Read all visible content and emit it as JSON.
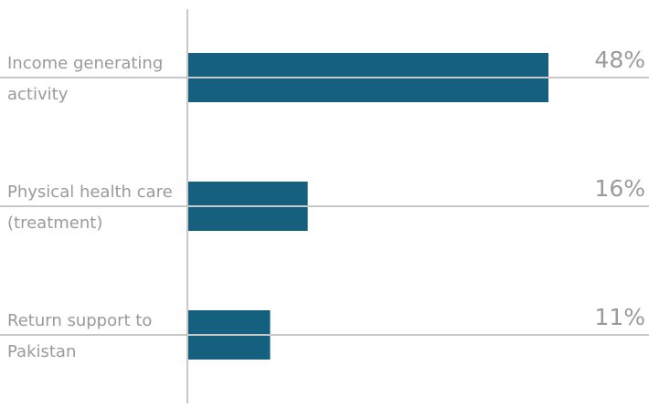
{
  "chart_data": {
    "type": "barh",
    "categories": [
      "Income generating activity",
      "Physical health care (treatment)",
      "Return support to Pakistan"
    ],
    "values": [
      48,
      16,
      11
    ],
    "value_labels": [
      "48%",
      "16%",
      "11%"
    ],
    "color": "#15607e"
  }
}
